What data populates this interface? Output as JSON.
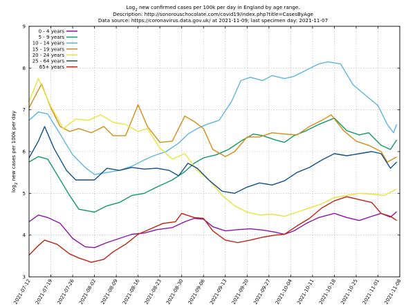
{
  "chart_data": {
    "type": "line",
    "title_lines": [
      "Log",
      "2",
      " new confirmed cases per 100k per day in England by age range.",
      "Description: http://sonorouschocolate.com/covid19/index.php?title=CasesByAge",
      "Data source: https://coronavirus.data.gov.uk/ at 2021-11-09; last specimen day: 2021-11-07"
    ],
    "ylabel": "log2 new cases per 100k per day",
    "ylabel_parts": [
      "log",
      "2",
      " new cases per 100k per day"
    ],
    "xlabel": "",
    "ylim": [
      3,
      9
    ],
    "yticks": [
      3,
      4,
      5,
      6,
      7,
      8,
      9
    ],
    "xlim": [
      "2021-07-12",
      "2021-11-08"
    ],
    "xticks": [
      "2021-07-12",
      "2021-07-19",
      "2021-07-26",
      "2021-08-02",
      "2021-08-09",
      "2021-08-16",
      "2021-08-23",
      "2021-08-30",
      "2021-09-06",
      "2021-09-13",
      "2021-09-20",
      "2021-09-27",
      "2021-10-04",
      "2021-10-11",
      "2021-10-18",
      "2021-10-25",
      "2021-11-01",
      "2021-11-08"
    ],
    "grid": true,
    "legend_position": "top-left",
    "series": [
      {
        "name": "0 - 4 years",
        "color": "#8e12a8",
        "points": [
          [
            "2021-07-12",
            4.32
          ],
          [
            "2021-07-15",
            4.48
          ],
          [
            "2021-07-18",
            4.42
          ],
          [
            "2021-07-22",
            4.28
          ],
          [
            "2021-07-26",
            3.92
          ],
          [
            "2021-07-30",
            3.72
          ],
          [
            "2021-08-02",
            3.7
          ],
          [
            "2021-08-06",
            3.82
          ],
          [
            "2021-08-10",
            3.92
          ],
          [
            "2021-08-14",
            4.02
          ],
          [
            "2021-08-18",
            4.05
          ],
          [
            "2021-08-22",
            4.13
          ],
          [
            "2021-08-27",
            4.18
          ],
          [
            "2021-08-31",
            4.32
          ],
          [
            "2021-09-03",
            4.4
          ],
          [
            "2021-09-06",
            4.38
          ],
          [
            "2021-09-09",
            4.2
          ],
          [
            "2021-09-13",
            4.1
          ],
          [
            "2021-09-17",
            4.13
          ],
          [
            "2021-09-21",
            4.15
          ],
          [
            "2021-09-25",
            4.12
          ],
          [
            "2021-09-29",
            4.07
          ],
          [
            "2021-10-02",
            4.02
          ],
          [
            "2021-10-05",
            4.1
          ],
          [
            "2021-10-09",
            4.28
          ],
          [
            "2021-10-13",
            4.42
          ],
          [
            "2021-10-18",
            4.52
          ],
          [
            "2021-10-22",
            4.42
          ],
          [
            "2021-10-26",
            4.35
          ],
          [
            "2021-10-30",
            4.45
          ],
          [
            "2021-11-02",
            4.52
          ],
          [
            "2021-11-05",
            4.43
          ],
          [
            "2021-11-07",
            4.56
          ]
        ]
      },
      {
        "name": "5 - 9 years",
        "color": "#109a60",
        "points": [
          [
            "2021-07-12",
            5.75
          ],
          [
            "2021-07-15",
            5.88
          ],
          [
            "2021-07-18",
            5.82
          ],
          [
            "2021-07-21",
            5.45
          ],
          [
            "2021-07-25",
            4.95
          ],
          [
            "2021-07-28",
            4.62
          ],
          [
            "2021-08-02",
            4.55
          ],
          [
            "2021-08-06",
            4.7
          ],
          [
            "2021-08-10",
            4.78
          ],
          [
            "2021-08-14",
            4.95
          ],
          [
            "2021-08-18",
            5.0
          ],
          [
            "2021-08-22",
            5.15
          ],
          [
            "2021-08-27",
            5.32
          ],
          [
            "2021-08-31",
            5.52
          ],
          [
            "2021-09-03",
            5.72
          ],
          [
            "2021-09-06",
            5.85
          ],
          [
            "2021-09-10",
            5.92
          ],
          [
            "2021-09-14",
            6.05
          ],
          [
            "2021-09-18",
            6.25
          ],
          [
            "2021-09-22",
            6.42
          ],
          [
            "2021-09-25",
            6.38
          ],
          [
            "2021-09-29",
            6.28
          ],
          [
            "2021-10-02",
            6.22
          ],
          [
            "2021-10-05",
            6.38
          ],
          [
            "2021-10-09",
            6.5
          ],
          [
            "2021-10-13",
            6.65
          ],
          [
            "2021-10-18",
            6.8
          ],
          [
            "2021-10-22",
            6.5
          ],
          [
            "2021-10-26",
            6.4
          ],
          [
            "2021-10-29",
            6.45
          ],
          [
            "2021-11-02",
            6.15
          ],
          [
            "2021-11-05",
            6.05
          ],
          [
            "2021-11-07",
            6.28
          ]
        ]
      },
      {
        "name": "10 - 14 years",
        "color": "#5cb4e2",
        "points": [
          [
            "2021-07-12",
            6.75
          ],
          [
            "2021-07-15",
            6.95
          ],
          [
            "2021-07-18",
            6.9
          ],
          [
            "2021-07-22",
            6.42
          ],
          [
            "2021-07-26",
            5.92
          ],
          [
            "2021-07-30",
            5.62
          ],
          [
            "2021-08-02",
            5.45
          ],
          [
            "2021-08-06",
            5.5
          ],
          [
            "2021-08-10",
            5.55
          ],
          [
            "2021-08-14",
            5.65
          ],
          [
            "2021-08-18",
            5.8
          ],
          [
            "2021-08-21",
            5.9
          ],
          [
            "2021-08-25",
            6.0
          ],
          [
            "2021-08-29",
            6.2
          ],
          [
            "2021-09-01",
            6.42
          ],
          [
            "2021-09-04",
            6.55
          ],
          [
            "2021-09-07",
            6.65
          ],
          [
            "2021-09-11",
            6.75
          ],
          [
            "2021-09-15",
            7.2
          ],
          [
            "2021-09-18",
            7.7
          ],
          [
            "2021-09-21",
            7.78
          ],
          [
            "2021-09-25",
            7.7
          ],
          [
            "2021-09-28",
            7.82
          ],
          [
            "2021-10-02",
            7.75
          ],
          [
            "2021-10-05",
            7.8
          ],
          [
            "2021-10-09",
            7.95
          ],
          [
            "2021-10-13",
            8.1
          ],
          [
            "2021-10-16",
            8.15
          ],
          [
            "2021-10-20",
            8.1
          ],
          [
            "2021-10-24",
            7.6
          ],
          [
            "2021-10-28",
            7.35
          ],
          [
            "2021-11-01",
            7.1
          ],
          [
            "2021-11-04",
            6.65
          ],
          [
            "2021-11-06",
            6.45
          ],
          [
            "2021-11-07",
            6.65
          ]
        ]
      },
      {
        "name": "15 - 19 years",
        "color": "#d68a14",
        "points": [
          [
            "2021-07-12",
            7.05
          ],
          [
            "2021-07-16",
            7.62
          ],
          [
            "2021-07-19",
            7.05
          ],
          [
            "2021-07-22",
            6.6
          ],
          [
            "2021-07-25",
            6.48
          ],
          [
            "2021-07-28",
            6.55
          ],
          [
            "2021-08-01",
            6.45
          ],
          [
            "2021-08-05",
            6.6
          ],
          [
            "2021-08-08",
            6.38
          ],
          [
            "2021-08-12",
            6.38
          ],
          [
            "2021-08-16",
            7.12
          ],
          [
            "2021-08-19",
            6.6
          ],
          [
            "2021-08-23",
            6.22
          ],
          [
            "2021-08-27",
            6.25
          ],
          [
            "2021-08-31",
            6.85
          ],
          [
            "2021-09-03",
            6.72
          ],
          [
            "2021-09-06",
            6.55
          ],
          [
            "2021-09-09",
            6.05
          ],
          [
            "2021-09-13",
            5.88
          ],
          [
            "2021-09-16",
            6.0
          ],
          [
            "2021-09-20",
            6.35
          ],
          [
            "2021-09-24",
            6.35
          ],
          [
            "2021-09-28",
            6.45
          ],
          [
            "2021-10-02",
            6.42
          ],
          [
            "2021-10-06",
            6.4
          ],
          [
            "2021-10-10",
            6.6
          ],
          [
            "2021-10-14",
            6.75
          ],
          [
            "2021-10-17",
            6.88
          ],
          [
            "2021-10-21",
            6.5
          ],
          [
            "2021-10-25",
            6.25
          ],
          [
            "2021-10-29",
            6.15
          ],
          [
            "2021-11-02",
            6.0
          ],
          [
            "2021-11-04",
            5.75
          ],
          [
            "2021-11-07",
            5.87
          ]
        ]
      },
      {
        "name": "20 - 24 years",
        "color": "#e8e436",
        "points": [
          [
            "2021-07-12",
            7.2
          ],
          [
            "2021-07-15",
            7.75
          ],
          [
            "2021-07-19",
            7.08
          ],
          [
            "2021-07-23",
            6.55
          ],
          [
            "2021-07-27",
            6.78
          ],
          [
            "2021-07-31",
            6.75
          ],
          [
            "2021-08-04",
            6.88
          ],
          [
            "2021-08-08",
            6.7
          ],
          [
            "2021-08-12",
            6.65
          ],
          [
            "2021-08-16",
            6.48
          ],
          [
            "2021-08-19",
            6.55
          ],
          [
            "2021-08-23",
            6.08
          ],
          [
            "2021-08-27",
            5.82
          ],
          [
            "2021-08-31",
            5.95
          ],
          [
            "2021-09-04",
            5.55
          ],
          [
            "2021-09-08",
            5.3
          ],
          [
            "2021-09-12",
            4.95
          ],
          [
            "2021-09-16",
            4.7
          ],
          [
            "2021-09-20",
            4.55
          ],
          [
            "2021-09-24",
            4.48
          ],
          [
            "2021-09-28",
            4.5
          ],
          [
            "2021-10-02",
            4.45
          ],
          [
            "2021-10-06",
            4.55
          ],
          [
            "2021-10-10",
            4.65
          ],
          [
            "2021-10-14",
            4.75
          ],
          [
            "2021-10-18",
            4.9
          ],
          [
            "2021-10-22",
            4.95
          ],
          [
            "2021-10-26",
            5.0
          ],
          [
            "2021-10-30",
            4.98
          ],
          [
            "2021-11-03",
            4.95
          ],
          [
            "2021-11-07",
            5.1
          ]
        ]
      },
      {
        "name": "25 - 64 years",
        "color": "#10508a",
        "points": [
          [
            "2021-07-12",
            5.85
          ],
          [
            "2021-07-15",
            6.25
          ],
          [
            "2021-07-17",
            6.6
          ],
          [
            "2021-07-20",
            6.08
          ],
          [
            "2021-07-24",
            5.55
          ],
          [
            "2021-07-27",
            5.32
          ],
          [
            "2021-08-02",
            5.32
          ],
          [
            "2021-08-06",
            5.6
          ],
          [
            "2021-08-10",
            5.55
          ],
          [
            "2021-08-14",
            5.62
          ],
          [
            "2021-08-18",
            5.58
          ],
          [
            "2021-08-22",
            5.6
          ],
          [
            "2021-08-26",
            5.55
          ],
          [
            "2021-08-29",
            5.42
          ],
          [
            "2021-09-01",
            5.72
          ],
          [
            "2021-09-04",
            5.6
          ],
          [
            "2021-09-08",
            5.3
          ],
          [
            "2021-09-12",
            5.05
          ],
          [
            "2021-09-16",
            5.0
          ],
          [
            "2021-09-20",
            5.15
          ],
          [
            "2021-09-24",
            5.25
          ],
          [
            "2021-09-28",
            5.2
          ],
          [
            "2021-10-02",
            5.3
          ],
          [
            "2021-10-06",
            5.5
          ],
          [
            "2021-10-10",
            5.62
          ],
          [
            "2021-10-14",
            5.8
          ],
          [
            "2021-10-18",
            5.95
          ],
          [
            "2021-10-22",
            5.9
          ],
          [
            "2021-10-26",
            5.95
          ],
          [
            "2021-10-30",
            6.0
          ],
          [
            "2021-11-02",
            5.95
          ],
          [
            "2021-11-05",
            5.6
          ],
          [
            "2021-11-07",
            5.75
          ]
        ]
      },
      {
        "name": "65+ years",
        "color": "#c02010",
        "points": [
          [
            "2021-07-12",
            3.52
          ],
          [
            "2021-07-15",
            3.75
          ],
          [
            "2021-07-17",
            3.88
          ],
          [
            "2021-07-21",
            3.78
          ],
          [
            "2021-07-25",
            3.55
          ],
          [
            "2021-07-28",
            3.45
          ],
          [
            "2021-08-01",
            3.35
          ],
          [
            "2021-08-05",
            3.42
          ],
          [
            "2021-08-08",
            3.6
          ],
          [
            "2021-08-12",
            3.78
          ],
          [
            "2021-08-16",
            4.02
          ],
          [
            "2021-08-20",
            4.15
          ],
          [
            "2021-08-24",
            4.28
          ],
          [
            "2021-08-28",
            4.32
          ],
          [
            "2021-08-30",
            4.52
          ],
          [
            "2021-09-03",
            4.42
          ],
          [
            "2021-09-06",
            4.4
          ],
          [
            "2021-09-09",
            4.1
          ],
          [
            "2021-09-13",
            3.88
          ],
          [
            "2021-09-17",
            3.82
          ],
          [
            "2021-09-21",
            3.88
          ],
          [
            "2021-09-25",
            3.95
          ],
          [
            "2021-09-29",
            4.0
          ],
          [
            "2021-10-02",
            4.02
          ],
          [
            "2021-10-06",
            4.22
          ],
          [
            "2021-10-10",
            4.4
          ],
          [
            "2021-10-14",
            4.65
          ],
          [
            "2021-10-18",
            4.82
          ],
          [
            "2021-10-22",
            4.92
          ],
          [
            "2021-10-26",
            4.85
          ],
          [
            "2021-10-30",
            4.78
          ],
          [
            "2021-11-02",
            4.52
          ],
          [
            "2021-11-05",
            4.45
          ],
          [
            "2021-11-07",
            4.35
          ]
        ]
      }
    ]
  }
}
